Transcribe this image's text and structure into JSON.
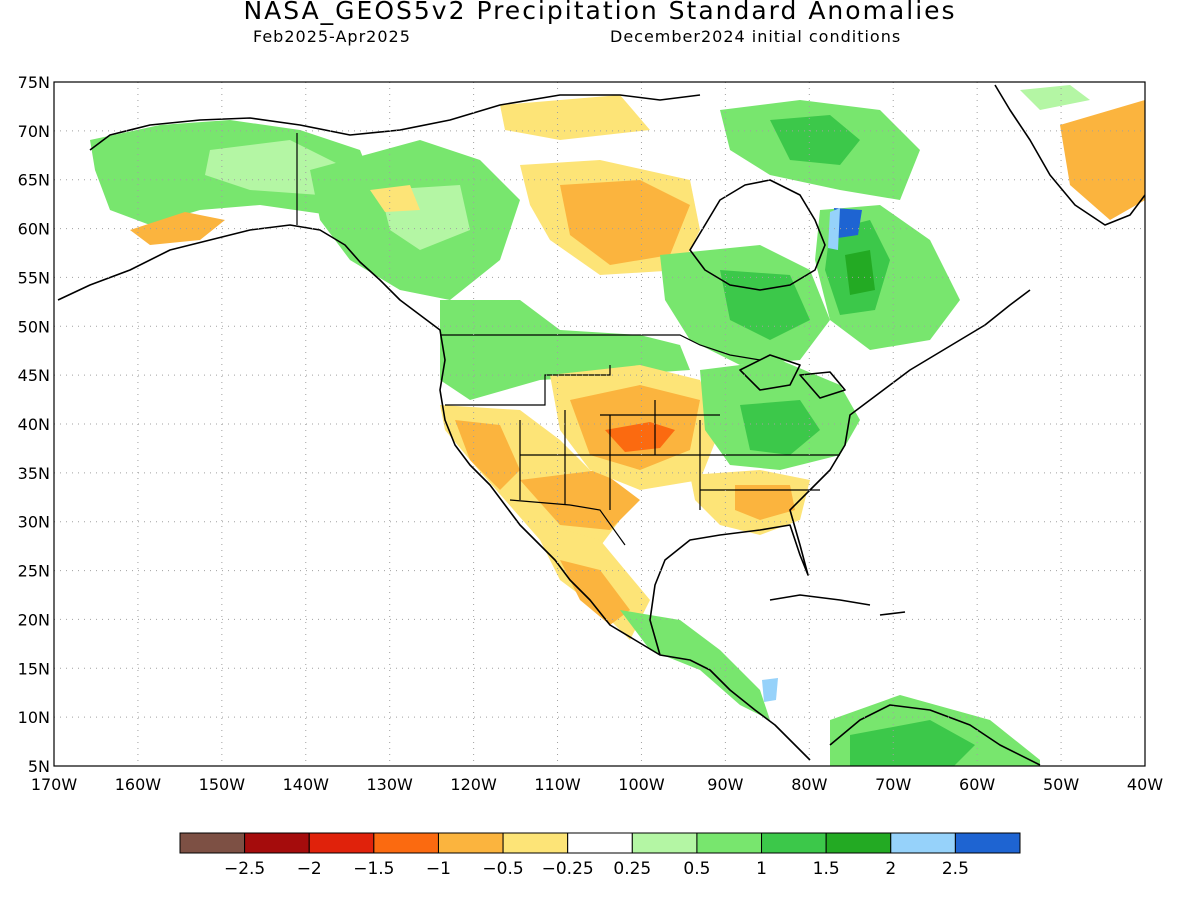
{
  "title": "NASA_GEOS5v2 Precipitation Standard Anomalies",
  "period": "Feb2025-Apr2025",
  "init": "December2024 initial conditions",
  "lat_labels": [
    "75N",
    "70N",
    "65N",
    "60N",
    "55N",
    "50N",
    "45N",
    "40N",
    "35N",
    "30N",
    "25N",
    "20N",
    "15N",
    "10N",
    "5N"
  ],
  "lon_labels": [
    "170W",
    "160W",
    "150W",
    "140W",
    "130W",
    "120W",
    "110W",
    "100W",
    "90W",
    "80W",
    "70W",
    "60W",
    "50W",
    "40W"
  ],
  "colorbar": {
    "colors": [
      "#7d5044",
      "#a50c0c",
      "#e0220b",
      "#fb6a10",
      "#fbb43e",
      "#fde477",
      "#ffffff",
      "#b4f6a4",
      "#78e66e",
      "#3cc84a",
      "#23aa23",
      "#96d2fa",
      "#1e64d2"
    ],
    "labels": [
      "-2.5",
      "-2",
      "-1.5",
      "-1",
      "-0.5",
      "-0.25",
      "0.25",
      "0.5",
      "1",
      "1.5",
      "2",
      "2.5"
    ]
  }
}
